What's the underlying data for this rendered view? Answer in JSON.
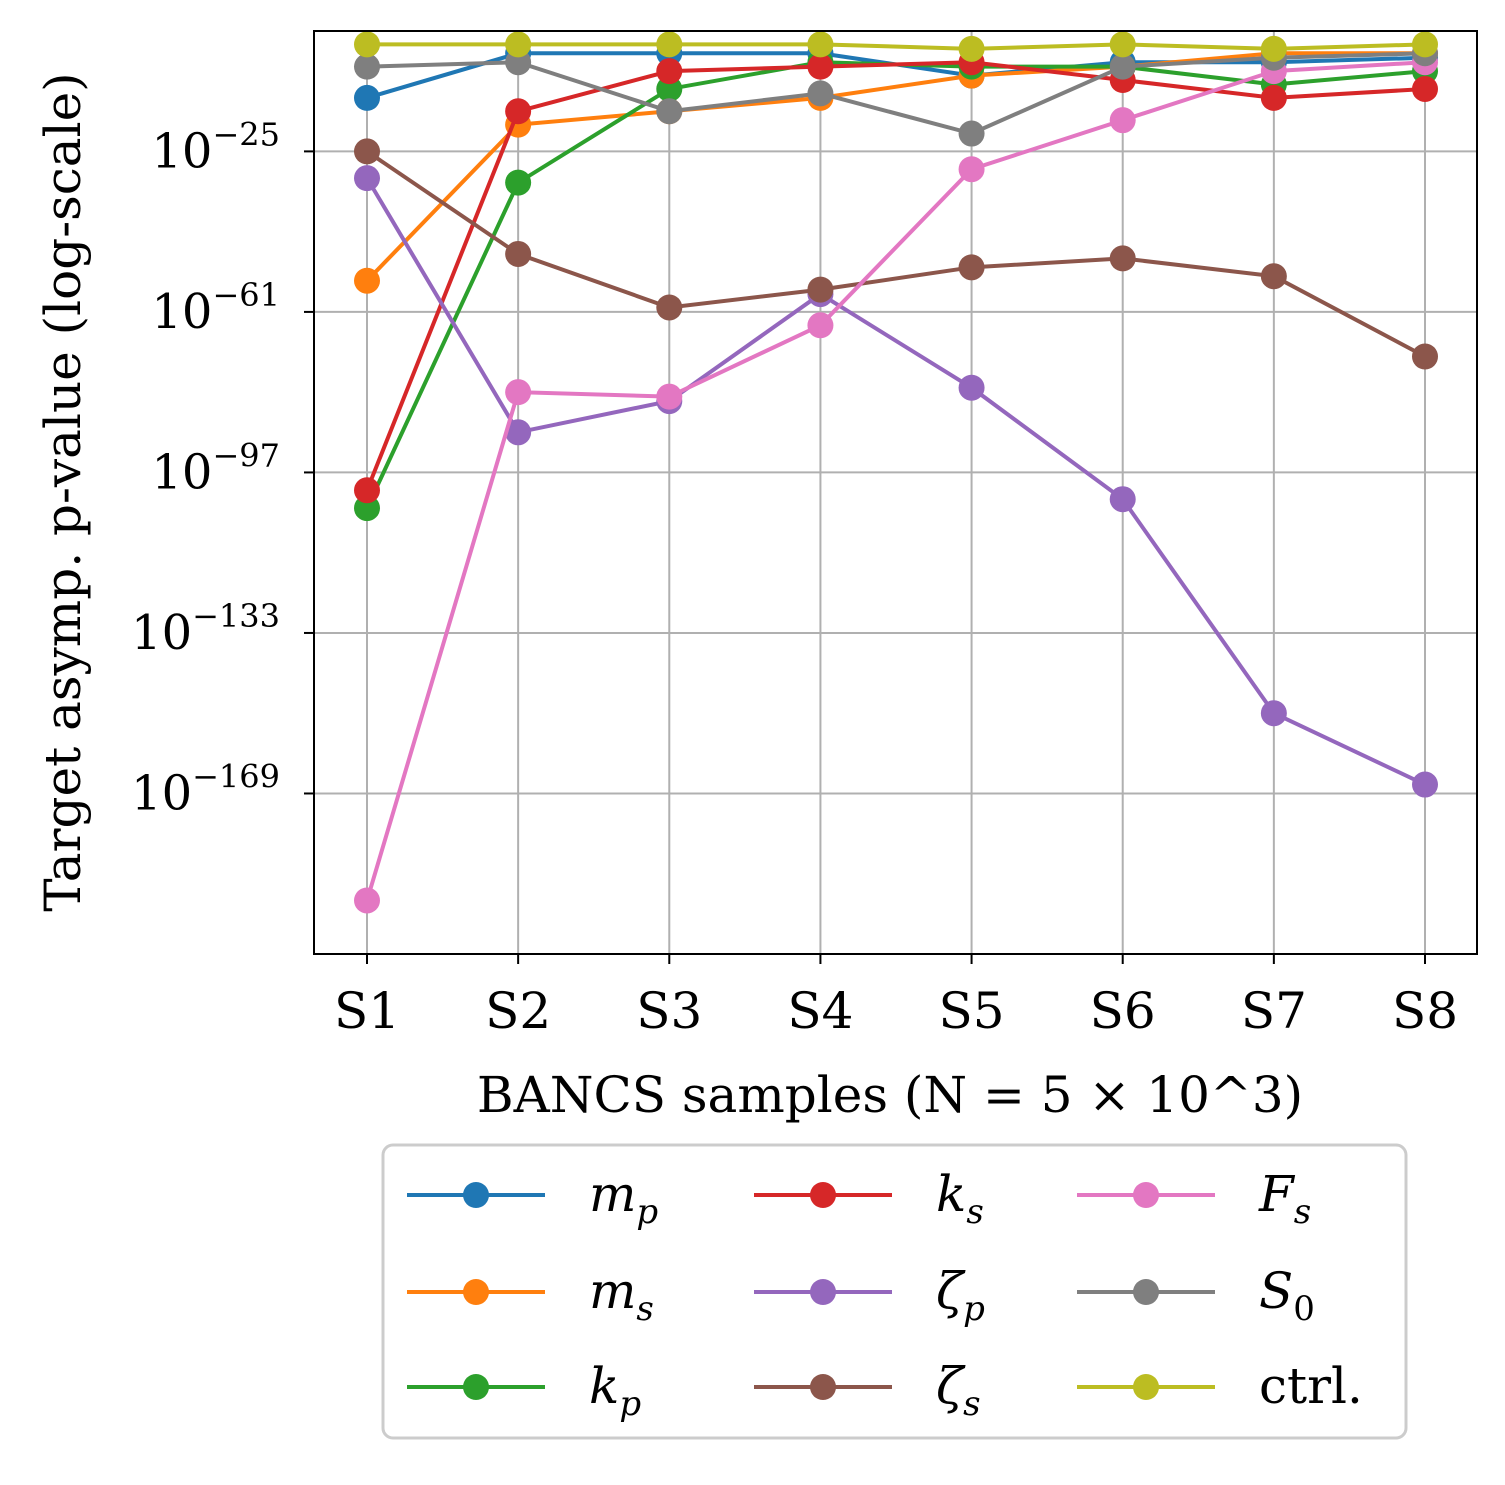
{
  "chart_data": {
    "type": "line",
    "xlabel": "BANCS samples (N = 5 × 10^3)",
    "ylabel": "Target asymp. p-value (log-scale)",
    "yscale": "log",
    "grid": true,
    "legend_placement": "below",
    "legend_columns": 3,
    "categories": [
      "S1",
      "S2",
      "S3",
      "S4",
      "S5",
      "S6",
      "S7",
      "S8"
    ],
    "ylim_log10": [
      -205,
      2
    ],
    "yticks": [
      {
        "exp": -25,
        "base": "10",
        "sup": "−25"
      },
      {
        "exp": -61,
        "base": "10",
        "sup": "−61"
      },
      {
        "exp": -97,
        "base": "10",
        "sup": "−97"
      },
      {
        "exp": -133,
        "base": "10",
        "sup": "−133"
      },
      {
        "exp": -169,
        "base": "10",
        "sup": "−169"
      }
    ],
    "series": [
      {
        "name": "m",
        "sub": "p",
        "color": "#1f77b4",
        "log10_values": [
          -13,
          -3,
          -3,
          -3,
          -8,
          -5,
          -5,
          -4
        ]
      },
      {
        "name": "m",
        "sub": "s",
        "color": "#ff7f0e",
        "log10_values": [
          -54,
          -19,
          -16,
          -13,
          -8,
          -6,
          -3,
          -3
        ]
      },
      {
        "name": "k",
        "sub": "p",
        "color": "#2ca02c",
        "log10_values": [
          -105,
          -32,
          -11,
          -5,
          -6,
          -6,
          -10,
          -7
        ]
      },
      {
        "name": "k",
        "sub": "s",
        "color": "#d62728",
        "log10_values": [
          -101,
          -16,
          -7,
          -6,
          -5,
          -9,
          -13,
          -11
        ]
      },
      {
        "name": "ζ",
        "sub": "p",
        "color": "#9467bd",
        "log10_values": [
          -31,
          -88,
          -81,
          -57,
          -78,
          -103,
          -151,
          -167
        ]
      },
      {
        "name": "ζ",
        "sub": "s",
        "color": "#8c564b",
        "log10_values": [
          -25,
          -48,
          -60,
          -56,
          -51,
          -49,
          -53,
          -71
        ]
      },
      {
        "name": "F",
        "sub": "s",
        "color": "#e377c2",
        "log10_values": [
          -193,
          -79,
          -80,
          -64,
          -29,
          -18,
          -7,
          -5
        ]
      },
      {
        "name": "S",
        "sub": "0",
        "color": "#7f7f7f",
        "log10_values": [
          -6,
          -5,
          -16,
          -12,
          -21,
          -6,
          -4,
          -3
        ]
      },
      {
        "name": "ctrl.",
        "sub": "",
        "color": "#bcbd22",
        "log10_values": [
          -1,
          -1,
          -1,
          -1,
          -2,
          -1,
          -2,
          -1
        ]
      }
    ]
  }
}
